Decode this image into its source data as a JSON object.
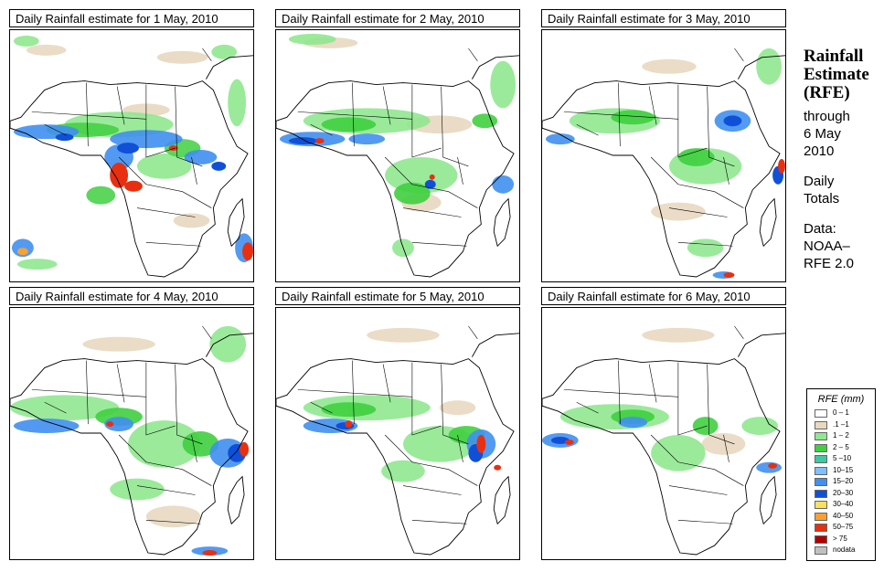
{
  "panels": [
    {
      "title": "Daily Rainfall estimate for  1 May, 2010"
    },
    {
      "title": "Daily Rainfall estimate for  2 May, 2010"
    },
    {
      "title": "Daily Rainfall estimate for  3 May, 2010"
    },
    {
      "title": "Daily Rainfall estimate for  4 May, 2010"
    },
    {
      "title": "Daily Rainfall estimate for  5 May, 2010"
    },
    {
      "title": "Daily Rainfall estimate for  6 May, 2010"
    }
  ],
  "side": {
    "title_line1": "Rainfall",
    "title_line2": "Estimate",
    "title_line3": "(RFE)",
    "through": "through",
    "date_line1": "6 May",
    "date_line2": "2010",
    "daily": "Daily",
    "totals": "Totals",
    "data_label": "Data:",
    "source_line1": "NOAA–",
    "source_line2": "RFE 2.0"
  },
  "legend": {
    "title": "RFE (mm)",
    "items": [
      {
        "label": "0 – 1",
        "color": "#ffffff"
      },
      {
        "label": ".1 –1",
        "color": "#e8d8c0"
      },
      {
        "label": "1 – 2",
        "color": "#90e890"
      },
      {
        "label": "2 – 5",
        "color": "#40d040"
      },
      {
        "label": "5 –10",
        "color": "#40c8a0"
      },
      {
        "label": "10–15",
        "color": "#80c0ff"
      },
      {
        "label": "15–20",
        "color": "#4090f0"
      },
      {
        "label": "20–30",
        "color": "#1050d8"
      },
      {
        "label": "30–40",
        "color": "#f8e060"
      },
      {
        "label": "40–50",
        "color": "#f8a030"
      },
      {
        "label": "50–75",
        "color": "#e83010"
      },
      {
        "label": "> 75",
        "color": "#b00000"
      },
      {
        "label": "nodata",
        "color": "#c0c0c0"
      }
    ]
  }
}
